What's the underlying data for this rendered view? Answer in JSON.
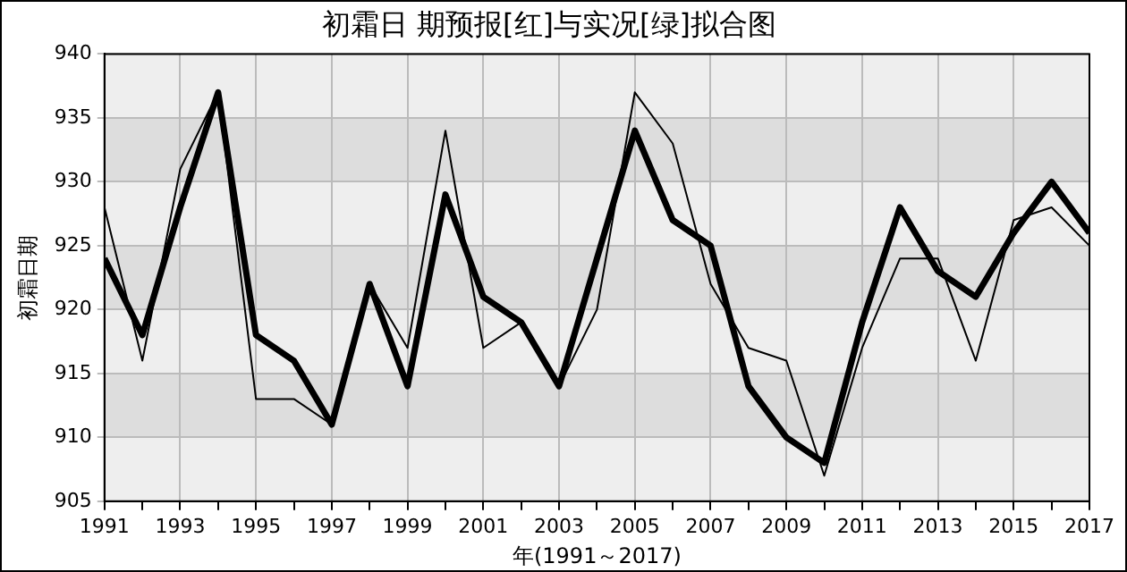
{
  "chart_data": {
    "type": "line",
    "title": "初霜日 期预报[红]与实况[绿]拟合图",
    "xlabel": "年(1991～2017)",
    "ylabel": "初霜日期",
    "x": [
      1991,
      1992,
      1993,
      1994,
      1995,
      1996,
      1997,
      1998,
      1999,
      2000,
      2001,
      2002,
      2003,
      2004,
      2005,
      2006,
      2007,
      2008,
      2009,
      2010,
      2011,
      2012,
      2013,
      2014,
      2015,
      2016,
      2017
    ],
    "series": [
      {
        "color": "#000000",
        "values": [
          924,
          918,
          928,
          937,
          918,
          916,
          911,
          922,
          914,
          929,
          921,
          919,
          914,
          924,
          934,
          927,
          925,
          914,
          910,
          908,
          919,
          928,
          923,
          921,
          926,
          930,
          926
        ]
      },
      {
        "color": "#000000",
        "values": [
          928,
          916,
          931,
          937,
          913,
          913,
          911,
          922,
          917,
          934,
          917,
          919,
          914,
          920,
          937,
          933,
          922,
          917,
          916,
          907,
          917,
          924,
          924,
          916,
          927,
          928,
          925
        ]
      }
    ],
    "xlim": [
      1991,
      2017
    ],
    "xticks": [
      1991,
      {
        "value": 1992,
        "label": null
      },
      1993,
      {
        "value": 1994,
        "label": null
      },
      1995,
      {
        "value": 1996,
        "label": null
      },
      1997,
      {
        "value": 1998,
        "label": null
      },
      1999,
      {
        "value": 2000,
        "label": null
      },
      2001,
      {
        "value": 2002,
        "label": null
      },
      2003,
      {
        "value": 2004,
        "label": null
      },
      2005,
      {
        "value": 2006,
        "label": null
      },
      2007,
      {
        "value": 2008,
        "label": null
      },
      2009,
      {
        "value": 2010,
        "label": null
      },
      2011,
      {
        "value": 2012,
        "label": null
      },
      2013,
      {
        "value": 2014,
        "label": null
      },
      2015,
      {
        "value": 2016,
        "label": null
      },
      2017
    ],
    "ylim": [
      905,
      940
    ],
    "yticks": [
      905,
      910,
      915,
      920,
      925,
      930,
      935,
      940
    ],
    "grid": true,
    "legend": false,
    "marker": "none",
    "line_style": "solid"
  }
}
